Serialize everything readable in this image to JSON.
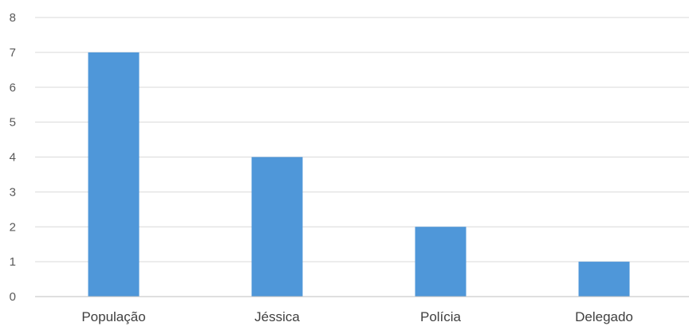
{
  "chart_data": {
    "type": "bar",
    "categories": [
      "População",
      "Jéssica",
      "Polícia",
      "Delegado"
    ],
    "values": [
      7,
      4,
      2,
      1
    ],
    "title": "",
    "xlabel": "",
    "ylabel": "",
    "ylim": [
      0,
      8
    ],
    "yticks": [
      0,
      1,
      2,
      3,
      4,
      5,
      6,
      7,
      8
    ],
    "grid": true,
    "legend": "none",
    "bar_color": "#4f97d9"
  }
}
